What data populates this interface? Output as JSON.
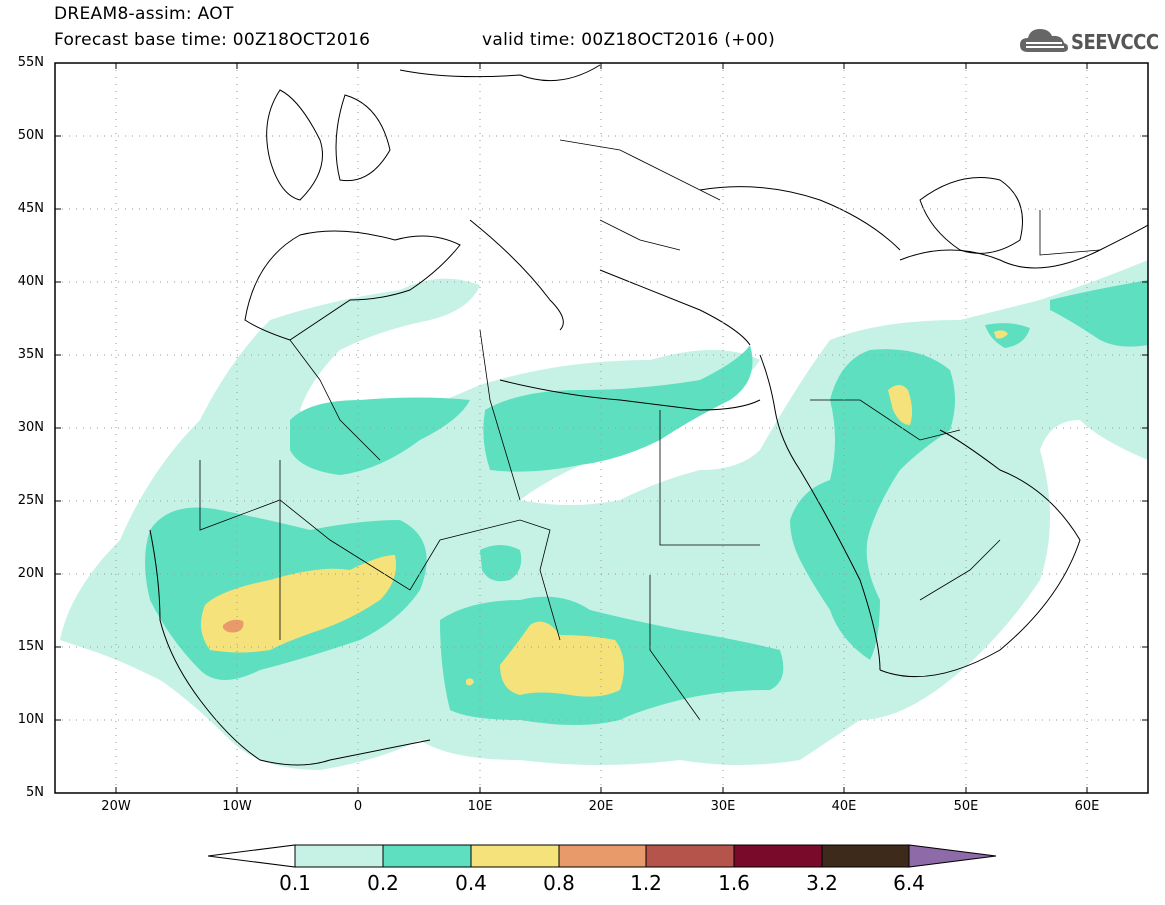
{
  "header": {
    "title_line1": "DREAM8-assim: AOT",
    "title_line2": "Forecast base time: 00Z18OCT2016",
    "valid_time": "valid time: 00Z18OCT2016 (+00)",
    "logo_text": "SEEVCCC"
  },
  "map": {
    "variable": "AOT",
    "lat_labels": [
      "55N",
      "50N",
      "45N",
      "40N",
      "35N",
      "30N",
      "25N",
      "20N",
      "15N",
      "10N",
      "5N"
    ],
    "lon_labels": [
      "20W",
      "10W",
      "0",
      "10E",
      "20E",
      "30E",
      "40E",
      "50E",
      "60E"
    ],
    "extent": {
      "lon_min": -25,
      "lon_max": 65,
      "lat_min": 5,
      "lat_max": 55
    }
  },
  "colorbar": {
    "labels": [
      "0.1",
      "0.2",
      "0.4",
      "0.8",
      "1.2",
      "1.6",
      "3.2",
      "6.4"
    ],
    "colors": [
      "#ffffff",
      "#c6f2e6",
      "#5ee0c0",
      "#f5e27a",
      "#e89a6a",
      "#b5544a",
      "#7a0a2a",
      "#3d2a1a",
      "#8e6aa8"
    ],
    "palette": {
      "level_0_1": "#c6f2e6",
      "level_0_2": "#5ee0c0",
      "level_0_4": "#f5e27a",
      "level_0_8": "#e89a6a"
    }
  }
}
